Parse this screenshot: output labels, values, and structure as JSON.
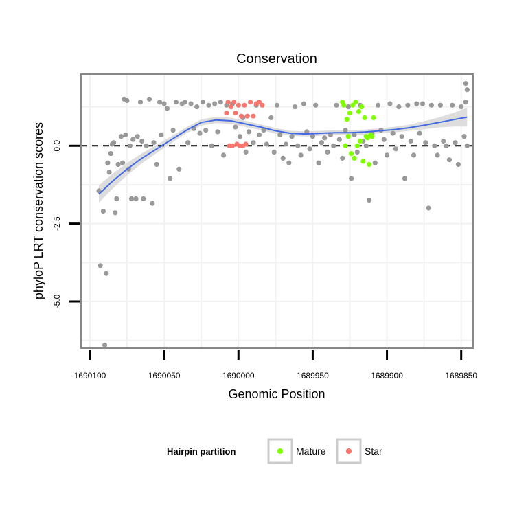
{
  "chart_data": {
    "type": "scatter",
    "title": "Conservation",
    "xlabel": "Genomic Position",
    "ylabel": "phyloP LRT conservation scores",
    "x_reversed": true,
    "xlim": [
      1690106,
      1689842
    ],
    "ylim": [
      -6.5,
      2.3
    ],
    "x_ticks": [
      1690100,
      1690050,
      1690000,
      1689950,
      1689900,
      1689850
    ],
    "x_tick_labels": [
      "1690100",
      "1690050",
      "1690000",
      "1689950",
      "1689900",
      "1689850"
    ],
    "y_ticks": [
      0.0,
      -2.5,
      -5.0
    ],
    "y_tick_labels": [
      "0.0",
      "-2.5",
      "-5.0"
    ],
    "reference_line": {
      "y": 0,
      "style": "dashed"
    },
    "grid": true,
    "legend": {
      "title": "Hairpin partition",
      "placement": "bottom",
      "entries": [
        {
          "label": "Mature",
          "color": "#7fff00"
        },
        {
          "label": "Star",
          "color": "#f8766d"
        }
      ]
    },
    "colors": {
      "other": "#999999",
      "smooth": "#4169e1",
      "ribbon": "#d9d9d9"
    },
    "smooth_line": {
      "x": [
        1690094,
        1690085,
        1690075,
        1690065,
        1690055,
        1690045,
        1690035,
        1690025,
        1690015,
        1690005,
        1689995,
        1689985,
        1689975,
        1689965,
        1689955,
        1689945,
        1689935,
        1689925,
        1689915,
        1689905,
        1689895,
        1689885,
        1689875,
        1689865,
        1689855,
        1689846
      ],
      "y": [
        -1.55,
        -1.15,
        -0.75,
        -0.4,
        -0.1,
        0.2,
        0.5,
        0.75,
        0.83,
        0.8,
        0.7,
        0.6,
        0.48,
        0.4,
        0.38,
        0.4,
        0.42,
        0.42,
        0.44,
        0.48,
        0.52,
        0.58,
        0.66,
        0.75,
        0.84,
        0.92
      ],
      "ci_halfwidth": [
        0.28,
        0.24,
        0.2,
        0.16,
        0.13,
        0.11,
        0.1,
        0.1,
        0.1,
        0.1,
        0.1,
        0.09,
        0.09,
        0.08,
        0.08,
        0.08,
        0.08,
        0.08,
        0.08,
        0.08,
        0.09,
        0.1,
        0.13,
        0.16,
        0.22,
        0.3
      ]
    },
    "series": [
      {
        "name": "Other",
        "x": [
          1690094,
          1690093,
          1690091,
          1690090,
          1690089,
          1690088,
          1690087,
          1690086,
          1690085,
          1690084,
          1690083,
          1690082,
          1690081,
          1690079,
          1690078,
          1690077,
          1690076,
          1690075,
          1690074,
          1690073,
          1690072,
          1690071,
          1690069,
          1690068,
          1690066,
          1690065,
          1690064,
          1690062,
          1690060,
          1690058,
          1690057,
          1690055,
          1690053,
          1690052,
          1690050,
          1690048,
          1690046,
          1690044,
          1690042,
          1690040,
          1690038,
          1690036,
          1690034,
          1690032,
          1690030,
          1690028,
          1690026,
          1690024,
          1690022,
          1690020,
          1690018,
          1690016,
          1690014,
          1690012,
          1690010,
          1690008,
          1690006,
          1690004,
          1690002,
          1689999,
          1689997,
          1689995,
          1689993,
          1689990,
          1689988,
          1689986,
          1689983,
          1689981,
          1689978,
          1689976,
          1689974,
          1689972,
          1689970,
          1689968,
          1689966,
          1689964,
          1689962,
          1689960,
          1689958,
          1689956,
          1689954,
          1689952,
          1689950,
          1689948,
          1689946,
          1689944,
          1689942,
          1689940,
          1689938,
          1689936,
          1689934,
          1689932,
          1689930,
          1689928,
          1689926,
          1689924,
          1689922,
          1689920,
          1689918,
          1689916,
          1689914,
          1689912,
          1689910,
          1689908,
          1689906,
          1689904,
          1689902,
          1689900,
          1689898,
          1689896,
          1689894,
          1689892,
          1689890,
          1689888,
          1689886,
          1689884,
          1689882,
          1689880,
          1689878,
          1689876,
          1689874,
          1689872,
          1689870,
          1689868,
          1689866,
          1689864,
          1689862,
          1689860,
          1689858,
          1689856,
          1689854,
          1689852,
          1689850,
          1689848,
          1689847,
          1689846,
          1689846,
          1689847
        ],
        "y": [
          -1.45,
          -3.85,
          -2.1,
          -6.4,
          -4.1,
          -0.55,
          -0.85,
          -0.25,
          0.05,
          0.1,
          -2.15,
          -1.7,
          -0.6,
          0.3,
          -0.55,
          1.5,
          0.35,
          1.45,
          -0.75,
          0.0,
          -1.7,
          0.2,
          -1.7,
          0.3,
          1.4,
          0.15,
          -1.7,
          0.0,
          1.5,
          -1.85,
          0.1,
          -0.6,
          1.4,
          0.35,
          1.35,
          1.2,
          -1.05,
          0.5,
          1.4,
          -0.75,
          1.35,
          1.4,
          0.1,
          1.35,
          0.55,
          1.25,
          0.4,
          1.4,
          0.5,
          1.3,
          0.0,
          1.35,
          0.45,
          1.4,
          -0.3,
          1.3,
          0.0,
          1.35,
          0.6,
          0.3,
          0.9,
          -0.2,
          0.45,
          0.1,
          1.3,
          0.35,
          0.5,
          0.05,
          0.9,
          -0.2,
          1.3,
          0.35,
          -0.4,
          0.05,
          -0.55,
          0.3,
          1.25,
          0.0,
          -0.3,
          1.35,
          0.45,
          -0.1,
          0.3,
          1.3,
          -0.55,
          0.1,
          0.25,
          -0.2,
          0.35,
          0.0,
          1.3,
          0.2,
          -0.4,
          0.5,
          1.25,
          -1.05,
          0.35,
          -0.2,
          1.3,
          0.15,
          0.0,
          -1.75,
          0.4,
          -0.55,
          1.3,
          0.5,
          0.2,
          -0.3,
          1.35,
          0.4,
          -0.1,
          1.25,
          0.3,
          -1.05,
          1.3,
          0.15,
          -0.3,
          1.35,
          0.4,
          1.35,
          0.1,
          -2.0,
          1.3,
          0.0,
          -0.3,
          1.3,
          0.15,
          0.0,
          -0.45,
          1.3,
          0.1,
          -0.6,
          1.25,
          0.3,
          1.4,
          0.0,
          1.8,
          2.0
        ],
        "color": "#999999"
      },
      {
        "name": "Star",
        "x": [
          1690007,
          1690005,
          1690003,
          1690002,
          1690000,
          1689998,
          1689996,
          1689994,
          1689992,
          1689990,
          1689988,
          1689986,
          1689984,
          1690008,
          1690006,
          1690004,
          1690001,
          1689999,
          1689997,
          1689995
        ],
        "y": [
          1.4,
          1.25,
          1.4,
          1.05,
          1.3,
          0.95,
          1.3,
          0.95,
          1.4,
          0.95,
          1.35,
          1.4,
          1.3,
          1.05,
          0.0,
          0.0,
          0.05,
          0.0,
          0.0,
          0.05
        ],
        "color": "#f8766d"
      },
      {
        "name": "Mature",
        "x": [
          1689929,
          1689927,
          1689925,
          1689923,
          1689921,
          1689919,
          1689917,
          1689915,
          1689913,
          1689911,
          1689909,
          1689928,
          1689926,
          1689924,
          1689922,
          1689920,
          1689918,
          1689916,
          1689914,
          1689912,
          1689910,
          1689930
        ],
        "y": [
          1.3,
          0.85,
          1.05,
          1.3,
          1.4,
          1.1,
          1.25,
          0.9,
          0.25,
          0.35,
          0.9,
          0.0,
          0.3,
          -0.25,
          -0.4,
          0.0,
          0.15,
          -0.5,
          0.3,
          -0.6,
          0.3,
          1.4
        ],
        "color": "#7fff00"
      }
    ]
  }
}
